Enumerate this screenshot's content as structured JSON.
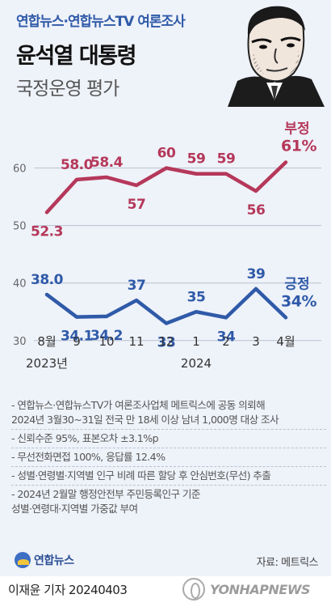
{
  "header": {
    "subtitle": "연합뉴스·연합뉴스TV 여론조사",
    "title": "윤석열 대통령",
    "title2": "국정운영 평가"
  },
  "colors": {
    "negative": "#b5385a",
    "positive": "#2f5aa8",
    "background": "#eef2f9",
    "grid": "#b9c2d0"
  },
  "chart_data": {
    "type": "line",
    "categories": [
      "8월",
      "9",
      "10",
      "11",
      "12",
      "1",
      "2",
      "3",
      "4월"
    ],
    "year_labels": [
      {
        "text": "2023년",
        "category_index": 0
      },
      {
        "text": "2024",
        "category_index": 5
      }
    ],
    "y_ticks": [
      30,
      40,
      50,
      60
    ],
    "ylim": [
      28,
      66
    ],
    "grid": true,
    "series": [
      {
        "name": "부정",
        "values": [
          52.3,
          58.0,
          58.4,
          57,
          60,
          59,
          59,
          56,
          61
        ],
        "labels": [
          "52.3",
          "58.0",
          "58.4",
          "57",
          "60",
          "59",
          "59",
          "56",
          "61%"
        ],
        "label_pos": [
          "below",
          "above",
          "above",
          "below",
          "above",
          "above",
          "above",
          "below",
          "above"
        ]
      },
      {
        "name": "긍정",
        "values": [
          38.0,
          34.1,
          34.2,
          37,
          33,
          35,
          34,
          39,
          34
        ],
        "labels": [
          "38.0",
          "34.1",
          "34.2",
          "37",
          "33",
          "35",
          "34",
          "39",
          "34%"
        ],
        "label_pos": [
          "above",
          "below",
          "below",
          "above",
          "below",
          "above",
          "below",
          "above",
          "above"
        ]
      }
    ]
  },
  "notes": [
    [
      "- 연합뉴스·연합뉴스TV가 여론조사업체 메트릭스에 공동 의뢰해",
      "2024년 3월30~31일 전국 만 18세 이상 남녀 1,000명 대상 조사"
    ],
    [
      "- 신뢰수준 95%, 표본오차 ±3.1%p"
    ],
    [
      "- 무선전화면접 100%, 응답률 12.4%"
    ],
    [
      "- 성별·연령별·지역별 인구 비례 따른 할당 후 안심번호(무선) 추출"
    ],
    [
      "- 2024년 2월말 행정안전부 주민등록인구 기준",
      "성별·연령대·지역별 가중값 부여"
    ]
  ],
  "footer": {
    "logo": "연합뉴스",
    "source": "자료: 메트릭스"
  },
  "byline": "이재윤 기자 20240403",
  "watermark": "YONHAPNEWS"
}
